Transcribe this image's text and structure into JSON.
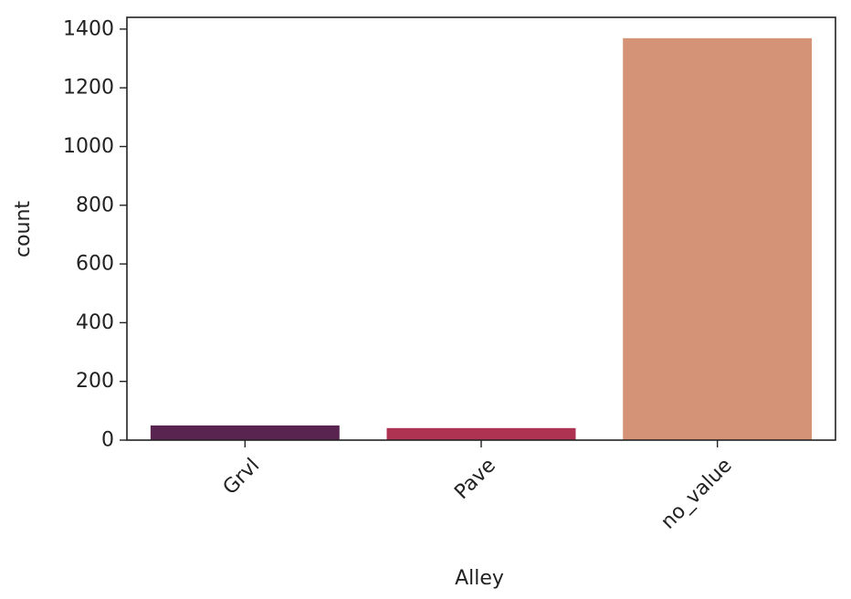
{
  "chart_data": {
    "type": "bar",
    "title": "",
    "xlabel": "Alley",
    "ylabel": "count",
    "categories": [
      "Grvl",
      "Pave",
      "no_value"
    ],
    "values": [
      50,
      41,
      1369
    ],
    "colors": [
      "#5a2450",
      "#ae3252",
      "#d49276"
    ],
    "ylim": [
      0,
      1440
    ],
    "yticks": [
      0,
      200,
      400,
      600,
      800,
      1000,
      1200,
      1400
    ],
    "grid": false,
    "legend": "none"
  }
}
